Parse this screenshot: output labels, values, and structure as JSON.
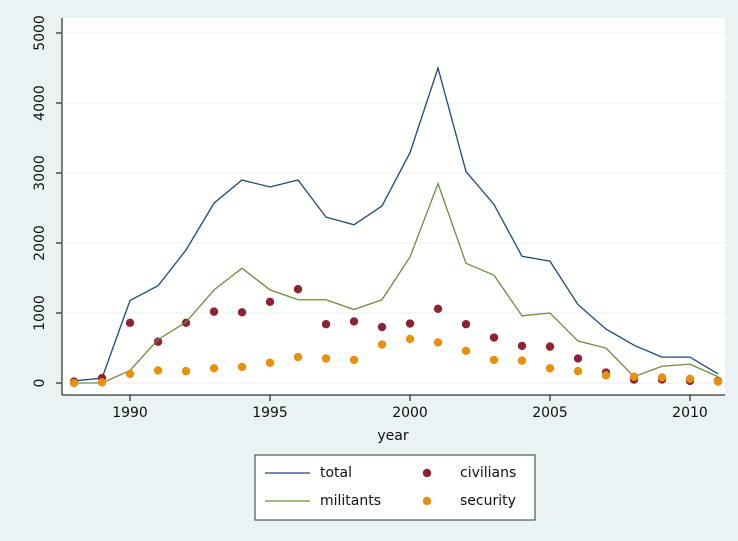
{
  "chart_data": {
    "type": "line",
    "x_label": "year",
    "x": [
      1988,
      1989,
      1990,
      1991,
      1992,
      1993,
      1994,
      1995,
      1996,
      1997,
      1998,
      1999,
      2000,
      2001,
      2002,
      2003,
      2004,
      2005,
      2006,
      2007,
      2008,
      2009,
      2010,
      2011
    ],
    "series": [
      {
        "name": "total",
        "color": "#1a4a7a",
        "mark": "line",
        "values": [
          30,
          70,
          1180,
          1390,
          1900,
          2570,
          2900,
          2800,
          2900,
          2370,
          2260,
          2530,
          3290,
          4500,
          3020,
          2550,
          1810,
          1740,
          1120,
          770,
          540,
          370,
          370,
          130
        ]
      },
      {
        "name": "civilians",
        "color": "#8b2331",
        "mark": "point",
        "values": [
          20,
          70,
          860,
          590,
          860,
          1020,
          1010,
          1160,
          1340,
          840,
          880,
          800,
          850,
          1060,
          840,
          650,
          530,
          520,
          350,
          150,
          50,
          50,
          30,
          30
        ]
      },
      {
        "name": "militants",
        "color": "#6b8c3a",
        "mark": "line",
        "values": [
          0,
          0,
          180,
          620,
          870,
          1330,
          1640,
          1330,
          1190,
          1190,
          1050,
          1190,
          1800,
          2850,
          1710,
          1540,
          960,
          1000,
          600,
          500,
          90,
          240,
          270,
          90
        ]
      },
      {
        "name": "security",
        "color": "#e8900c",
        "mark": "point",
        "values": [
          0,
          10,
          130,
          180,
          170,
          210,
          230,
          290,
          370,
          350,
          330,
          550,
          630,
          580,
          460,
          330,
          320,
          210,
          170,
          110,
          90,
          80,
          60,
          20
        ]
      }
    ],
    "xlim": [
      1987.57,
      2011.25
    ],
    "xticks": [
      1990,
      1995,
      2000,
      2005,
      2010
    ],
    "ylim": [
      -171,
      5214
    ],
    "yticks": [
      0,
      1000,
      2000,
      3000,
      4000,
      5000
    ],
    "grid": true
  }
}
